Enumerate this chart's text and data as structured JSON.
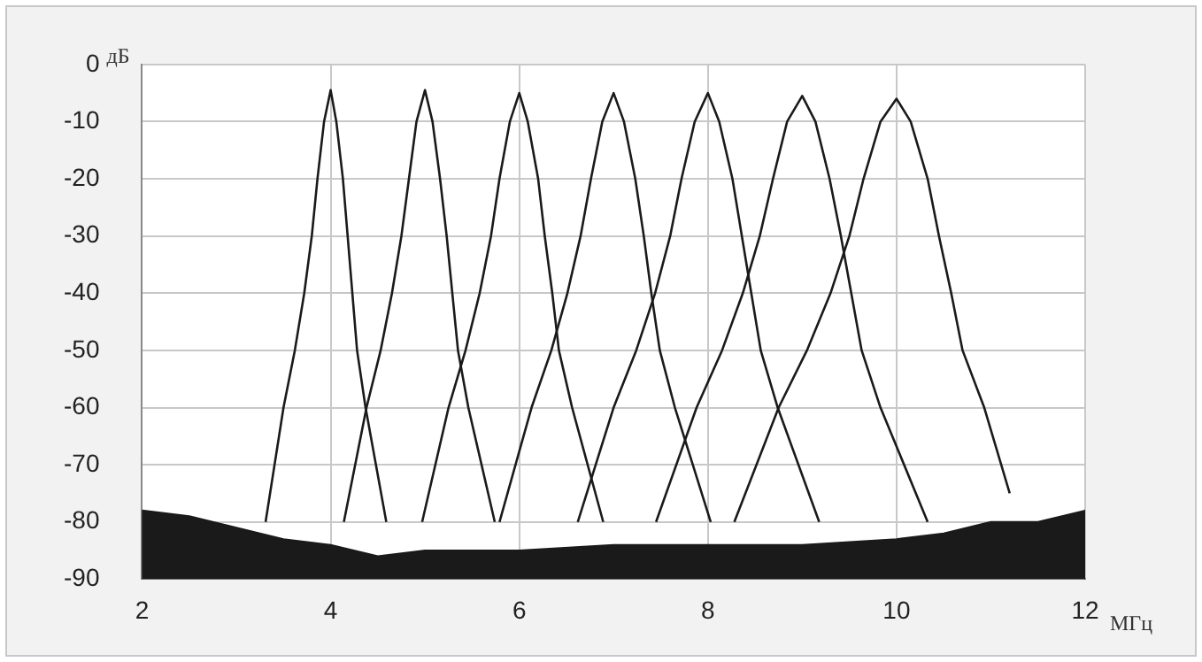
{
  "chart_data": {
    "type": "line",
    "xlabel": "МГц",
    "ylabel": "дБ",
    "xlim": [
      2,
      12
    ],
    "xticks": [
      2,
      4,
      6,
      8,
      10,
      12
    ],
    "ylim": [
      -90,
      0
    ],
    "yticks": [
      -90,
      -80,
      -70,
      -60,
      -50,
      -40,
      -30,
      -20,
      -10,
      0
    ],
    "grid": true,
    "legend": false,
    "marker": "none",
    "line_style": "solid",
    "series": [
      {
        "type": "area",
        "color": "#1a1a1a",
        "x": [
          2,
          2,
          2.5,
          3,
          3.5,
          4,
          4.5,
          5,
          6,
          7,
          8,
          9,
          10,
          10.5,
          11,
          11.5,
          12,
          12
        ],
        "values": [
          -90,
          -78,
          -79,
          -81,
          -83,
          -84,
          -86,
          -85,
          -85,
          -84,
          -84,
          -84,
          -83,
          -82,
          -80,
          -80,
          -78,
          -90
        ]
      },
      {
        "color": "#1a1a1a",
        "x": [
          3.31,
          3.5,
          3.62,
          3.72,
          3.8,
          3.86,
          3.93,
          4,
          4.06,
          4.13,
          4.18,
          4.23,
          4.28,
          4.37,
          4.59
        ],
        "values": [
          -80,
          -60,
          -50,
          -40,
          -30,
          -20,
          -10,
          -4.5,
          -10,
          -20,
          -30,
          -40,
          -50,
          -60,
          -80
        ]
      },
      {
        "color": "#1a1a1a",
        "x": [
          4.14,
          4.38,
          4.53,
          4.65,
          4.75,
          4.83,
          4.91,
          5,
          5.08,
          5.16,
          5.23,
          5.29,
          5.35,
          5.46,
          5.74
        ],
        "values": [
          -80,
          -60,
          -50,
          -40,
          -30,
          -20,
          -10,
          -4.5,
          -10,
          -20,
          -30,
          -40,
          -50,
          -60,
          -80
        ]
      },
      {
        "color": "#1a1a1a",
        "x": [
          4.97,
          5.25,
          5.43,
          5.58,
          5.7,
          5.79,
          5.9,
          6,
          6.09,
          6.2,
          6.27,
          6.35,
          6.42,
          6.56,
          6.89
        ],
        "values": [
          -80,
          -60,
          -50,
          -40,
          -30,
          -20,
          -10,
          -5,
          -10,
          -20,
          -30,
          -40,
          -50,
          -60,
          -80
        ]
      },
      {
        "color": "#1a1a1a",
        "x": [
          5.79,
          6.13,
          6.34,
          6.51,
          6.65,
          6.76,
          6.88,
          7,
          7.11,
          7.23,
          7.32,
          7.4,
          7.49,
          7.65,
          8.03
        ],
        "values": [
          -80,
          -60,
          -50,
          -40,
          -30,
          -20,
          -10,
          -5,
          -10,
          -20,
          -30,
          -40,
          -50,
          -60,
          -80
        ]
      },
      {
        "color": "#1a1a1a",
        "x": [
          6.62,
          7,
          7.24,
          7.44,
          7.6,
          7.72,
          7.86,
          8,
          8.12,
          8.26,
          8.36,
          8.46,
          8.56,
          8.74,
          9.18
        ],
        "values": [
          -80,
          -60,
          -50,
          -40,
          -30,
          -20,
          -10,
          -5,
          -10,
          -20,
          -30,
          -40,
          -50,
          -60,
          -80
        ]
      },
      {
        "color": "#1a1a1a",
        "x": [
          7.45,
          7.88,
          8.15,
          8.37,
          8.55,
          8.69,
          8.84,
          9,
          9.14,
          9.29,
          9.41,
          9.52,
          9.63,
          9.83,
          10.33
        ],
        "values": [
          -80,
          -60,
          -50,
          -40,
          -30,
          -20,
          -10,
          -5.5,
          -10,
          -20,
          -30,
          -40,
          -50,
          -60,
          -80
        ]
      },
      {
        "color": "#1a1a1a",
        "x": [
          8.28,
          8.75,
          9.05,
          9.3,
          9.5,
          9.65,
          9.83,
          10,
          10.15,
          10.33,
          10.45,
          10.58,
          10.7,
          10.93,
          11.2
        ],
        "values": [
          -80,
          -60,
          -50,
          -40,
          -30,
          -20,
          -10,
          -6,
          -10,
          -20,
          -30,
          -40,
          -50,
          -60,
          -75
        ]
      }
    ]
  }
}
